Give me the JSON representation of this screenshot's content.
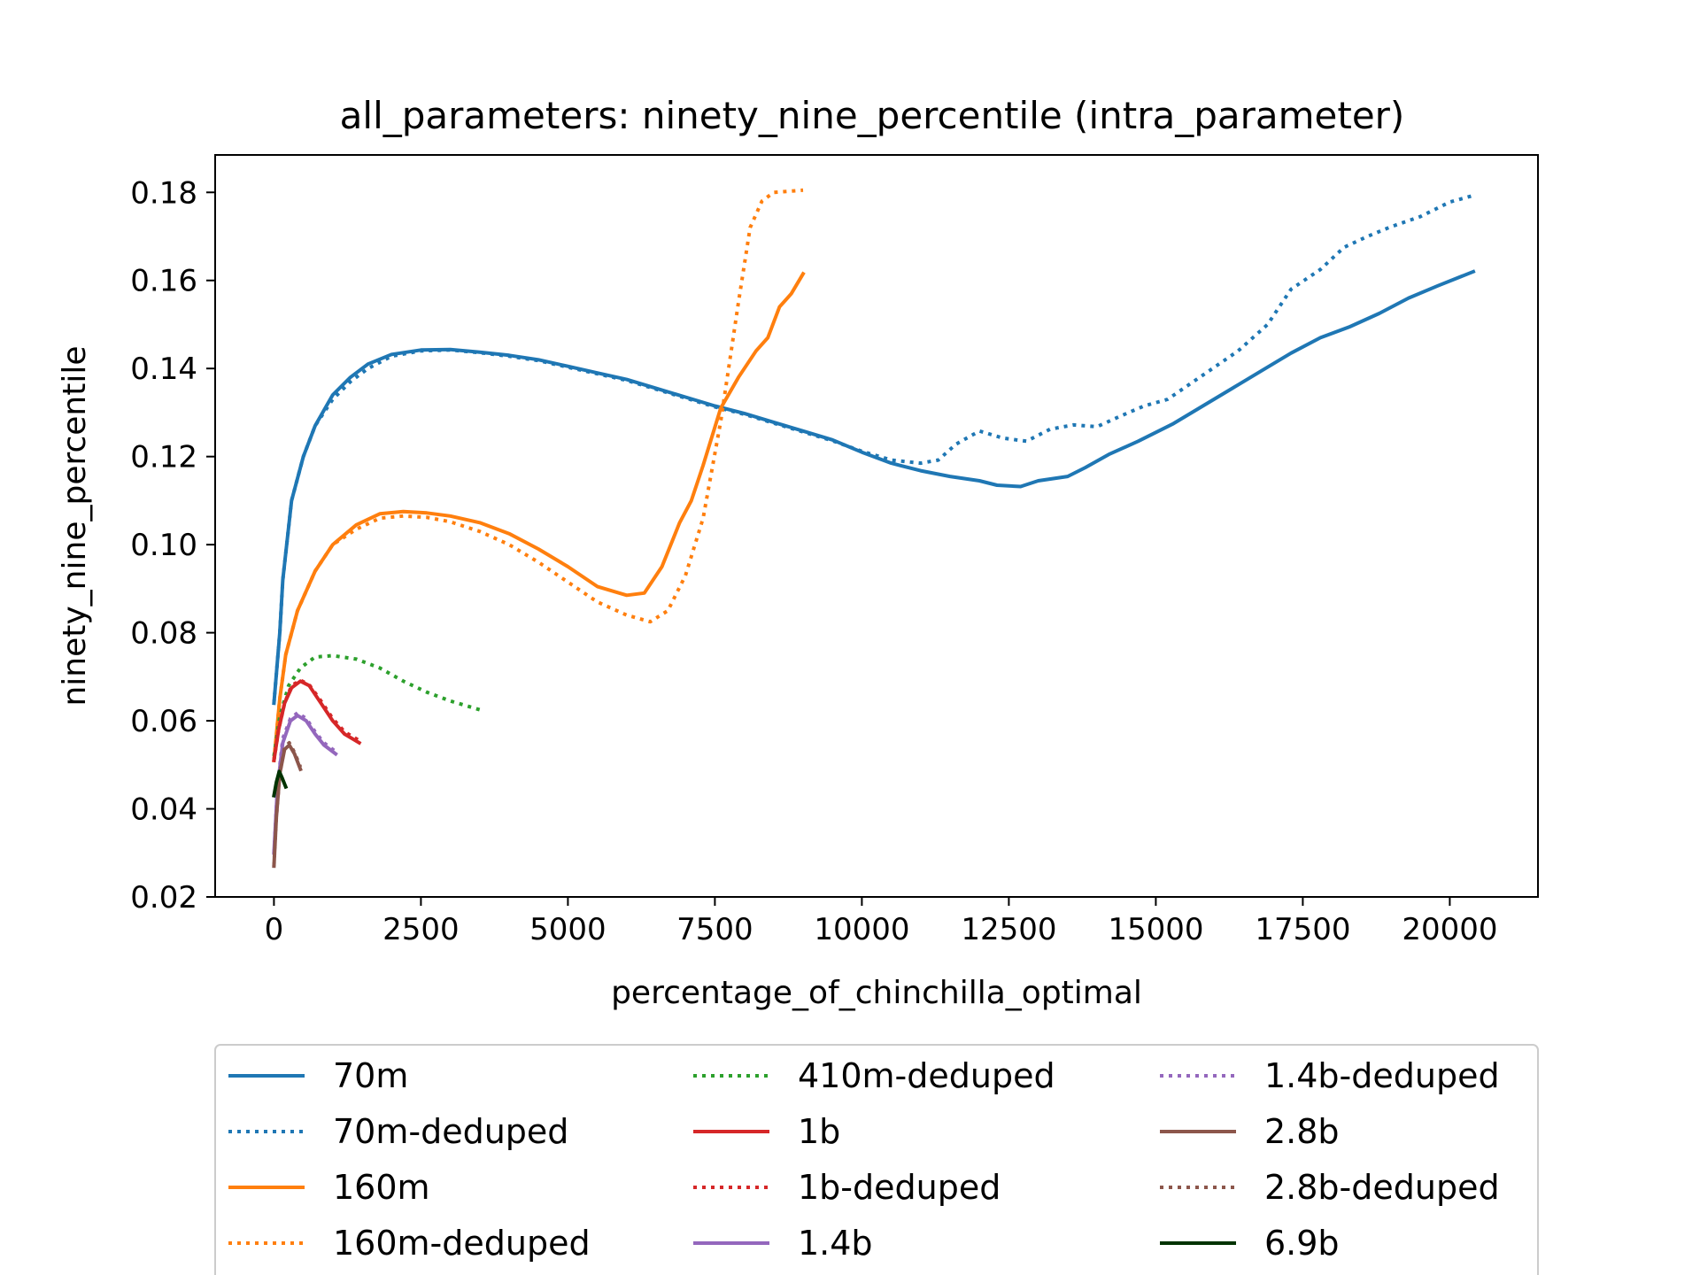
{
  "chart_data": {
    "type": "line",
    "title": "all_parameters: ninety_nine_percentile (intra_parameter)",
    "xlabel": "percentage_of_chinchilla_optimal",
    "ylabel": "ninety_nine_percentile",
    "xlim": [
      -1000,
      21500
    ],
    "ylim": [
      0.02,
      0.1885
    ],
    "xticks": [
      0,
      2500,
      5000,
      7500,
      10000,
      12500,
      15000,
      17500,
      20000
    ],
    "yticks": [
      0.02,
      0.04,
      0.06,
      0.08,
      0.1,
      0.12,
      0.14,
      0.16,
      0.18
    ],
    "xtick_labels": [
      "0",
      "2500",
      "5000",
      "7500",
      "10000",
      "12500",
      "15000",
      "17500",
      "20000"
    ],
    "ytick_labels": [
      "0.02",
      "0.04",
      "0.06",
      "0.08",
      "0.10",
      "0.12",
      "0.14",
      "0.16",
      "0.18"
    ],
    "grid": false,
    "legend_placement": "bottom-center",
    "legend_columns": 3,
    "series": [
      {
        "name": "70m",
        "color": "#1f77b4",
        "style": "solid",
        "points": [
          [
            0,
            0.064
          ],
          [
            100,
            0.08
          ],
          [
            150,
            0.092
          ],
          [
            300,
            0.11
          ],
          [
            500,
            0.12
          ],
          [
            700,
            0.127
          ],
          [
            1000,
            0.134
          ],
          [
            1300,
            0.138
          ],
          [
            1600,
            0.141
          ],
          [
            2000,
            0.1432
          ],
          [
            2500,
            0.1442
          ],
          [
            3000,
            0.1443
          ],
          [
            3500,
            0.1437
          ],
          [
            4000,
            0.143
          ],
          [
            4500,
            0.142
          ],
          [
            5000,
            0.1405
          ],
          [
            5500,
            0.139
          ],
          [
            6000,
            0.1375
          ],
          [
            6500,
            0.1355
          ],
          [
            7000,
            0.1335
          ],
          [
            7500,
            0.1315
          ],
          [
            8000,
            0.1298
          ],
          [
            8500,
            0.1278
          ],
          [
            9000,
            0.1258
          ],
          [
            9500,
            0.1238
          ],
          [
            10000,
            0.121
          ],
          [
            10500,
            0.1185
          ],
          [
            11000,
            0.1168
          ],
          [
            11500,
            0.1155
          ],
          [
            12000,
            0.1145
          ],
          [
            12300,
            0.1135
          ],
          [
            12700,
            0.1132
          ],
          [
            13000,
            0.1145
          ],
          [
            13500,
            0.1155
          ],
          [
            13800,
            0.1175
          ],
          [
            14200,
            0.1205
          ],
          [
            14700,
            0.1235
          ],
          [
            15300,
            0.1275
          ],
          [
            15800,
            0.1315
          ],
          [
            16300,
            0.1355
          ],
          [
            16800,
            0.1395
          ],
          [
            17300,
            0.1435
          ],
          [
            17800,
            0.147
          ],
          [
            18300,
            0.1495
          ],
          [
            18800,
            0.1525
          ],
          [
            19300,
            0.156
          ],
          [
            19800,
            0.1588
          ],
          [
            20400,
            0.162
          ]
        ]
      },
      {
        "name": "70m-deduped",
        "color": "#1f77b4",
        "style": "dotted",
        "points": [
          [
            0,
            0.064
          ],
          [
            100,
            0.08
          ],
          [
            150,
            0.092
          ],
          [
            300,
            0.11
          ],
          [
            500,
            0.12
          ],
          [
            700,
            0.127
          ],
          [
            1000,
            0.133
          ],
          [
            1300,
            0.137
          ],
          [
            1600,
            0.14
          ],
          [
            2000,
            0.1428
          ],
          [
            2500,
            0.144
          ],
          [
            3000,
            0.1442
          ],
          [
            3500,
            0.1436
          ],
          [
            4000,
            0.1428
          ],
          [
            4500,
            0.1418
          ],
          [
            5000,
            0.1403
          ],
          [
            5500,
            0.1388
          ],
          [
            6000,
            0.1373
          ],
          [
            6500,
            0.1353
          ],
          [
            7000,
            0.1333
          ],
          [
            7500,
            0.1313
          ],
          [
            8000,
            0.1296
          ],
          [
            8500,
            0.1276
          ],
          [
            9000,
            0.1256
          ],
          [
            9500,
            0.1236
          ],
          [
            10000,
            0.1212
          ],
          [
            10500,
            0.1192
          ],
          [
            11000,
            0.1185
          ],
          [
            11300,
            0.1192
          ],
          [
            11600,
            0.1228
          ],
          [
            12000,
            0.1258
          ],
          [
            12400,
            0.1242
          ],
          [
            12800,
            0.1235
          ],
          [
            13200,
            0.1262
          ],
          [
            13600,
            0.1272
          ],
          [
            14000,
            0.1268
          ],
          [
            14400,
            0.1292
          ],
          [
            14800,
            0.1315
          ],
          [
            15200,
            0.133
          ],
          [
            15800,
            0.1385
          ],
          [
            16400,
            0.144
          ],
          [
            16900,
            0.15
          ],
          [
            17300,
            0.158
          ],
          [
            17800,
            0.1625
          ],
          [
            18200,
            0.1675
          ],
          [
            18600,
            0.17
          ],
          [
            19000,
            0.1722
          ],
          [
            19500,
            0.1745
          ],
          [
            20000,
            0.1778
          ],
          [
            20400,
            0.1793
          ]
        ]
      },
      {
        "name": "160m",
        "color": "#ff7f0e",
        "style": "solid",
        "points": [
          [
            0,
            0.051
          ],
          [
            100,
            0.065
          ],
          [
            200,
            0.075
          ],
          [
            400,
            0.085
          ],
          [
            700,
            0.094
          ],
          [
            1000,
            0.1
          ],
          [
            1400,
            0.1045
          ],
          [
            1800,
            0.107
          ],
          [
            2200,
            0.1075
          ],
          [
            2600,
            0.1072
          ],
          [
            3000,
            0.1065
          ],
          [
            3500,
            0.105
          ],
          [
            4000,
            0.1025
          ],
          [
            4500,
            0.099
          ],
          [
            5000,
            0.095
          ],
          [
            5500,
            0.0905
          ],
          [
            6000,
            0.0885
          ],
          [
            6300,
            0.089
          ],
          [
            6600,
            0.095
          ],
          [
            6900,
            0.105
          ],
          [
            7100,
            0.11
          ],
          [
            7300,
            0.118
          ],
          [
            7600,
            0.131
          ],
          [
            7900,
            0.138
          ],
          [
            8200,
            0.144
          ],
          [
            8400,
            0.147
          ],
          [
            8600,
            0.154
          ],
          [
            8800,
            0.157
          ],
          [
            9000,
            0.1615
          ]
        ]
      },
      {
        "name": "160m-deduped",
        "color": "#ff7f0e",
        "style": "dotted",
        "points": [
          [
            0,
            0.051
          ],
          [
            100,
            0.065
          ],
          [
            200,
            0.075
          ],
          [
            400,
            0.085
          ],
          [
            700,
            0.094
          ],
          [
            1000,
            0.1
          ],
          [
            1400,
            0.1035
          ],
          [
            1800,
            0.106
          ],
          [
            2200,
            0.1065
          ],
          [
            2600,
            0.1062
          ],
          [
            3000,
            0.1052
          ],
          [
            3500,
            0.103
          ],
          [
            4000,
            0.1
          ],
          [
            4500,
            0.096
          ],
          [
            5000,
            0.0915
          ],
          [
            5500,
            0.087
          ],
          [
            6000,
            0.084
          ],
          [
            6400,
            0.0825
          ],
          [
            6700,
            0.085
          ],
          [
            7000,
            0.093
          ],
          [
            7300,
            0.106
          ],
          [
            7600,
            0.128
          ],
          [
            7900,
            0.155
          ],
          [
            8100,
            0.172
          ],
          [
            8300,
            0.178
          ],
          [
            8500,
            0.18
          ],
          [
            9000,
            0.1805
          ]
        ]
      },
      {
        "name": "410m-deduped",
        "color": "#2ca02c",
        "style": "dotted",
        "points": [
          [
            0,
            0.052
          ],
          [
            100,
            0.061
          ],
          [
            250,
            0.068
          ],
          [
            450,
            0.072
          ],
          [
            700,
            0.0745
          ],
          [
            1000,
            0.0748
          ],
          [
            1400,
            0.074
          ],
          [
            1800,
            0.072
          ],
          [
            2200,
            0.069
          ],
          [
            2600,
            0.0665
          ],
          [
            3000,
            0.0645
          ],
          [
            3500,
            0.0625
          ]
        ]
      },
      {
        "name": "1b",
        "color": "#d62728",
        "style": "solid",
        "points": [
          [
            0,
            0.051
          ],
          [
            80,
            0.058
          ],
          [
            180,
            0.064
          ],
          [
            300,
            0.0675
          ],
          [
            450,
            0.069
          ],
          [
            600,
            0.068
          ],
          [
            800,
            0.064
          ],
          [
            1000,
            0.06
          ],
          [
            1200,
            0.057
          ],
          [
            1450,
            0.055
          ]
        ]
      },
      {
        "name": "1b-deduped",
        "color": "#d62728",
        "style": "dotted",
        "points": [
          [
            0,
            0.051
          ],
          [
            80,
            0.058
          ],
          [
            180,
            0.064
          ],
          [
            300,
            0.068
          ],
          [
            450,
            0.0692
          ],
          [
            600,
            0.0682
          ],
          [
            800,
            0.0645
          ],
          [
            1000,
            0.0605
          ],
          [
            1200,
            0.0575
          ],
          [
            1450,
            0.0555
          ]
        ]
      },
      {
        "name": "1.4b",
        "color": "#9467bd",
        "style": "solid",
        "points": [
          [
            0,
            0.03
          ],
          [
            60,
            0.045
          ],
          [
            150,
            0.055
          ],
          [
            280,
            0.06
          ],
          [
            400,
            0.0612
          ],
          [
            550,
            0.06
          ],
          [
            700,
            0.057
          ],
          [
            850,
            0.0545
          ],
          [
            1050,
            0.0525
          ]
        ]
      },
      {
        "name": "1.4b-deduped",
        "color": "#9467bd",
        "style": "dotted",
        "points": [
          [
            0,
            0.03
          ],
          [
            60,
            0.045
          ],
          [
            150,
            0.056
          ],
          [
            280,
            0.0605
          ],
          [
            400,
            0.0618
          ],
          [
            550,
            0.0605
          ],
          [
            700,
            0.0575
          ],
          [
            850,
            0.055
          ],
          [
            1050,
            0.053
          ]
        ]
      },
      {
        "name": "2.8b",
        "color": "#8c564b",
        "style": "solid",
        "points": [
          [
            0,
            0.027
          ],
          [
            40,
            0.038
          ],
          [
            100,
            0.048
          ],
          [
            180,
            0.0535
          ],
          [
            260,
            0.0545
          ],
          [
            350,
            0.0525
          ],
          [
            450,
            0.049
          ]
        ]
      },
      {
        "name": "2.8b-deduped",
        "color": "#8c564b",
        "style": "dotted",
        "points": [
          [
            0,
            0.027
          ],
          [
            40,
            0.038
          ],
          [
            100,
            0.048
          ],
          [
            180,
            0.054
          ],
          [
            260,
            0.055
          ],
          [
            350,
            0.0528
          ],
          [
            450,
            0.0495
          ]
        ]
      },
      {
        "name": "6.9b",
        "color": "#003300",
        "style": "solid",
        "points": [
          [
            0,
            0.043
          ],
          [
            40,
            0.046
          ],
          [
            90,
            0.0485
          ],
          [
            140,
            0.047
          ],
          [
            200,
            0.045
          ]
        ]
      }
    ]
  }
}
